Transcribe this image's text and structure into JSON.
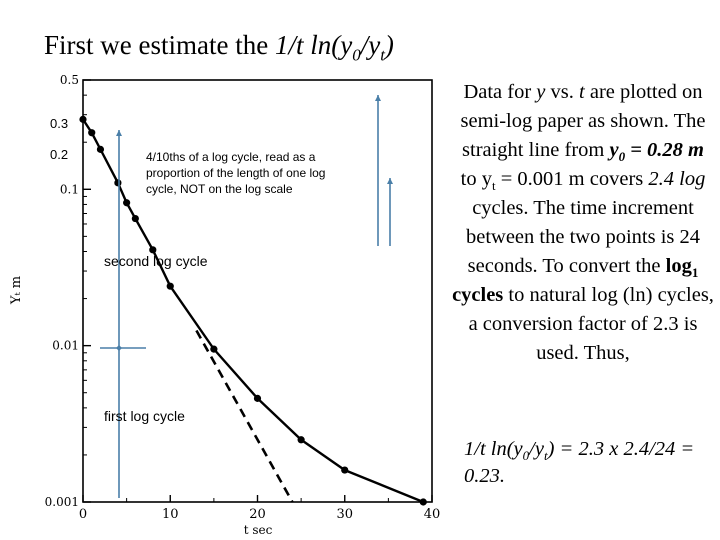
{
  "title": {
    "prefix": "First we estimate the ",
    "expr_a": "1/t ln(y",
    "sub0": "0",
    "expr_b": "/y",
    "subt": "t",
    "expr_c": ")"
  },
  "side_text": {
    "s1": "Data for ",
    "s1_y": "y",
    "s2": " vs. ",
    "s2_t": "t",
    "s3": " are plotted on semi-log paper as shown. The straight line from ",
    "s3_y0": "y",
    "s3_sub0": "0",
    "s3_eq": " = 0.28 m",
    "s4": " to y",
    "s4_sub": "t",
    "s5": " = 0.001 m covers ",
    "s5_log": "2.4 log",
    "s6": " cycles. The time increment between the two points is 24 seconds. To convert the ",
    "s6_log": "log",
    "s6_sub": "1",
    "s6_cycles": " cycles",
    "s7": " to natural log (ln) cycles, a conversion factor of 2.3 is used. Thus,"
  },
  "formula": {
    "a": "1/t ln(y",
    "sub0": "0",
    "b": "/y",
    "subt": "t",
    "c": ") = 2.3 x 2.4/24 = 0.23."
  },
  "annotations": {
    "tick_03": "0.3",
    "tick_02": "0.2",
    "note_line1": "4/10ths of a log cycle, read as a",
    "note_line2": "proportion of the length of one log",
    "note_line3": "cycle, NOT on the log scale",
    "second_cycle": "second  log cycle",
    "first_cycle": "first log cycle"
  },
  "colors": {
    "annotation_line": "#4a7fa8",
    "data": "#000000"
  },
  "chart_data": {
    "type": "scatter",
    "xlabel": "t    sec",
    "ylabel": "Yₜ  m",
    "x_ticks": [
      "0",
      "10",
      "20",
      "30",
      "40"
    ],
    "y_ticks": [
      "0.5",
      "0.1",
      "0.01",
      "0.001"
    ],
    "y_scale": "log",
    "xlim": [
      0,
      40
    ],
    "ylim": [
      0.001,
      0.5
    ],
    "series": [
      {
        "points": [
          {
            "x": 0,
            "y": 0.28
          },
          {
            "x": 1,
            "y": 0.23
          },
          {
            "x": 2,
            "y": 0.18
          },
          {
            "x": 4,
            "y": 0.11
          },
          {
            "x": 5,
            "y": 0.082
          },
          {
            "x": 6,
            "y": 0.065
          },
          {
            "x": 8,
            "y": 0.041
          },
          {
            "x": 10,
            "y": 0.024
          },
          {
            "x": 15,
            "y": 0.0095
          },
          {
            "x": 20,
            "y": 0.0046
          },
          {
            "x": 25,
            "y": 0.0025
          },
          {
            "x": 30,
            "y": 0.0016
          },
          {
            "x": 39,
            "y": 0.001
          }
        ]
      },
      {
        "style": "dashed",
        "points": [
          {
            "x": 13,
            "y": 0.0125
          },
          {
            "x": 24,
            "y": 0.001
          }
        ]
      }
    ]
  }
}
